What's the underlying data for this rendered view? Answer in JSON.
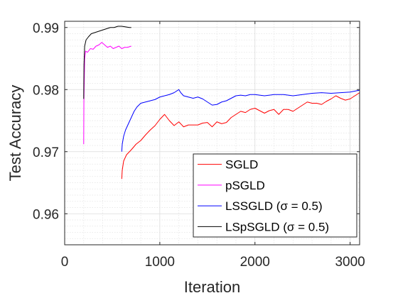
{
  "chart_data": {
    "type": "line",
    "xlabel": "Iteration",
    "ylabel": "Test Accuracy",
    "xlim": [
      0,
      3100
    ],
    "ylim": [
      0.955,
      0.991
    ],
    "xticks": [
      0,
      1000,
      2000,
      3000
    ],
    "xtick_labels": [
      "0",
      "1000",
      "2000",
      "3000"
    ],
    "yticks": [
      0.96,
      0.97,
      0.98,
      0.99
    ],
    "ytick_labels": [
      "0.96",
      "0.97",
      "0.98",
      "0.99"
    ],
    "grid": true,
    "minor_grid": true,
    "legend_position": "bottom-right",
    "series": [
      {
        "name": "SGLD",
        "legend_label": "SGLD",
        "color": "#ff0000",
        "points": [
          [
            600,
            0.9656
          ],
          [
            605,
            0.967
          ],
          [
            620,
            0.9685
          ],
          [
            650,
            0.9695
          ],
          [
            700,
            0.9703
          ],
          [
            750,
            0.9712
          ],
          [
            800,
            0.9718
          ],
          [
            850,
            0.9727
          ],
          [
            900,
            0.9735
          ],
          [
            950,
            0.9742
          ],
          [
            1000,
            0.9752
          ],
          [
            1050,
            0.976
          ],
          [
            1100,
            0.975
          ],
          [
            1150,
            0.9742
          ],
          [
            1200,
            0.9748
          ],
          [
            1250,
            0.974
          ],
          [
            1300,
            0.9743
          ],
          [
            1400,
            0.9743
          ],
          [
            1450,
            0.9746
          ],
          [
            1500,
            0.9747
          ],
          [
            1550,
            0.974
          ],
          [
            1600,
            0.9748
          ],
          [
            1650,
            0.9745
          ],
          [
            1700,
            0.9747
          ],
          [
            1750,
            0.9755
          ],
          [
            1800,
            0.976
          ],
          [
            1850,
            0.9765
          ],
          [
            1900,
            0.9763
          ],
          [
            1950,
            0.9768
          ],
          [
            2000,
            0.977
          ],
          [
            2050,
            0.9766
          ],
          [
            2100,
            0.9762
          ],
          [
            2150,
            0.9766
          ],
          [
            2200,
            0.9768
          ],
          [
            2250,
            0.976
          ],
          [
            2300,
            0.9768
          ],
          [
            2350,
            0.9768
          ],
          [
            2400,
            0.9765
          ],
          [
            2450,
            0.977
          ],
          [
            2500,
            0.9775
          ],
          [
            2550,
            0.978
          ],
          [
            2600,
            0.9778
          ],
          [
            2650,
            0.9778
          ],
          [
            2700,
            0.9776
          ],
          [
            2750,
            0.9781
          ],
          [
            2800,
            0.9785
          ],
          [
            2850,
            0.979
          ],
          [
            2900,
            0.9786
          ],
          [
            2950,
            0.9783
          ],
          [
            3000,
            0.9785
          ],
          [
            3050,
            0.979
          ],
          [
            3100,
            0.9795
          ]
        ]
      },
      {
        "name": "pSGLD",
        "legend_label": "pSGLD",
        "color": "#ff00ff",
        "points": [
          [
            200,
            0.9712
          ],
          [
            202,
            0.978
          ],
          [
            210,
            0.985
          ],
          [
            220,
            0.9862
          ],
          [
            240,
            0.986
          ],
          [
            270,
            0.9866
          ],
          [
            300,
            0.9865
          ],
          [
            330,
            0.987
          ],
          [
            360,
            0.9872
          ],
          [
            390,
            0.9876
          ],
          [
            420,
            0.9872
          ],
          [
            450,
            0.9868
          ],
          [
            480,
            0.987
          ],
          [
            510,
            0.9866
          ],
          [
            540,
            0.9868
          ],
          [
            570,
            0.987
          ],
          [
            600,
            0.9866
          ],
          [
            630,
            0.9868
          ],
          [
            660,
            0.9868
          ],
          [
            700,
            0.987
          ]
        ]
      },
      {
        "name": "LSSGLD",
        "legend_label": "LSSGLD (σ = 0.5)",
        "color": "#0000ff",
        "points": [
          [
            600,
            0.97
          ],
          [
            605,
            0.9712
          ],
          [
            620,
            0.9725
          ],
          [
            640,
            0.9735
          ],
          [
            670,
            0.9745
          ],
          [
            700,
            0.9755
          ],
          [
            730,
            0.9765
          ],
          [
            760,
            0.9772
          ],
          [
            800,
            0.9778
          ],
          [
            850,
            0.978
          ],
          [
            900,
            0.9782
          ],
          [
            950,
            0.9784
          ],
          [
            1000,
            0.9788
          ],
          [
            1050,
            0.979
          ],
          [
            1100,
            0.9792
          ],
          [
            1150,
            0.9795
          ],
          [
            1200,
            0.98
          ],
          [
            1220,
            0.9795
          ],
          [
            1250,
            0.979
          ],
          [
            1300,
            0.9788
          ],
          [
            1350,
            0.9786
          ],
          [
            1400,
            0.9788
          ],
          [
            1450,
            0.9785
          ],
          [
            1500,
            0.978
          ],
          [
            1550,
            0.9775
          ],
          [
            1600,
            0.9776
          ],
          [
            1650,
            0.978
          ],
          [
            1700,
            0.9782
          ],
          [
            1750,
            0.9786
          ],
          [
            1800,
            0.979
          ],
          [
            1850,
            0.9791
          ],
          [
            1900,
            0.979
          ],
          [
            1950,
            0.9792
          ],
          [
            2000,
            0.9792
          ],
          [
            2100,
            0.979
          ],
          [
            2200,
            0.9792
          ],
          [
            2300,
            0.9792
          ],
          [
            2400,
            0.979
          ],
          [
            2500,
            0.9792
          ],
          [
            2600,
            0.9794
          ],
          [
            2700,
            0.9795
          ],
          [
            2800,
            0.9794
          ],
          [
            2900,
            0.9795
          ],
          [
            3000,
            0.9796
          ],
          [
            3100,
            0.9799
          ]
        ]
      },
      {
        "name": "LSpSGLD",
        "legend_label": "LSpSGLD (σ = 0.5)",
        "color": "#000000",
        "points": [
          [
            200,
            0.9785
          ],
          [
            203,
            0.984
          ],
          [
            210,
            0.987
          ],
          [
            225,
            0.988
          ],
          [
            250,
            0.9885
          ],
          [
            280,
            0.989
          ],
          [
            320,
            0.9892
          ],
          [
            360,
            0.9894
          ],
          [
            400,
            0.9896
          ],
          [
            440,
            0.9898
          ],
          [
            480,
            0.99
          ],
          [
            520,
            0.99
          ],
          [
            560,
            0.9902
          ],
          [
            600,
            0.9902
          ],
          [
            640,
            0.9901
          ],
          [
            680,
            0.99
          ],
          [
            700,
            0.99
          ]
        ]
      }
    ]
  }
}
